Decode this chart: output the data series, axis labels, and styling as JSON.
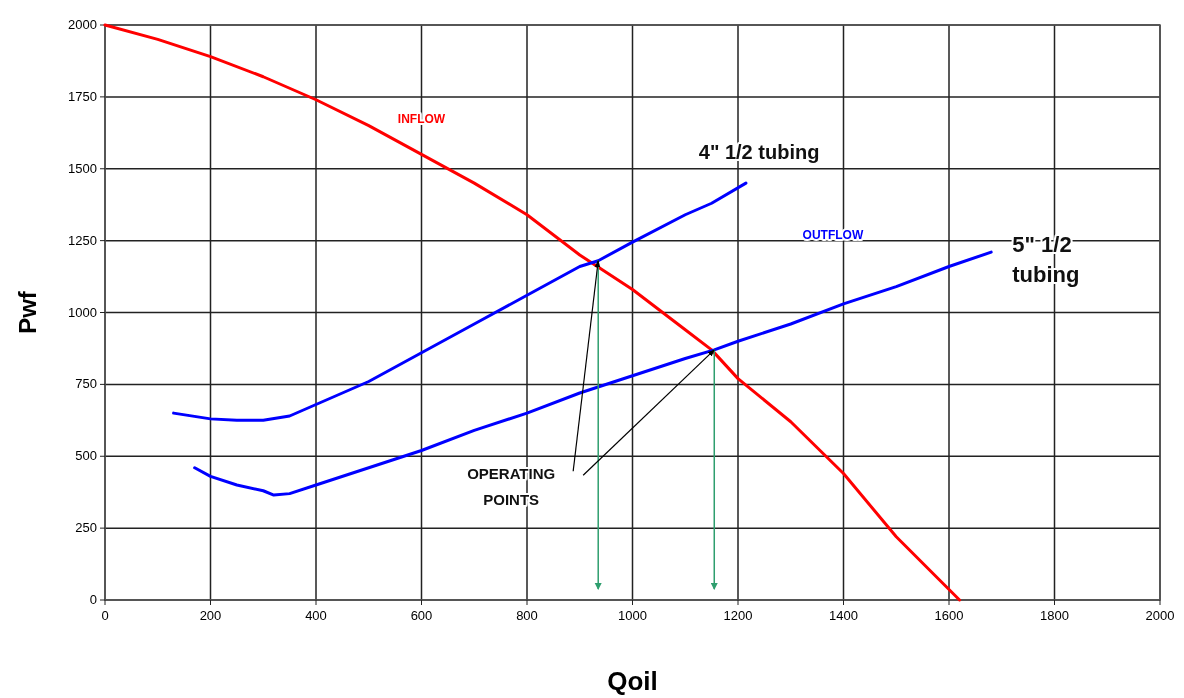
{
  "chart_data": {
    "type": "line",
    "xlabel": "Qoil",
    "ylabel": "Pwf",
    "xlim": [
      0,
      2000
    ],
    "ylim": [
      0,
      2000
    ],
    "xticks": [
      0,
      200,
      400,
      600,
      800,
      1000,
      1200,
      1400,
      1600,
      1800,
      2000
    ],
    "yticks": [
      0,
      250,
      500,
      750,
      1000,
      1250,
      1500,
      1750,
      2000
    ],
    "grid": true,
    "series": [
      {
        "name": "INFLOW",
        "color": "#ff0000",
        "x": [
          0,
          100,
          200,
          300,
          400,
          500,
          600,
          700,
          800,
          900,
          1000,
          1100,
          1150,
          1200,
          1300,
          1400,
          1500,
          1620
        ],
        "values": [
          2000,
          1950,
          1890,
          1820,
          1740,
          1650,
          1550,
          1450,
          1340,
          1200,
          1080,
          940,
          870,
          770,
          620,
          440,
          220,
          0
        ]
      },
      {
        "name": "4\" 1/2 tubing",
        "color": "#0000ff",
        "x": [
          130,
          200,
          250,
          300,
          350,
          400,
          500,
          600,
          700,
          800,
          900,
          935,
          1000,
          1100,
          1150,
          1215
        ],
        "values": [
          650,
          630,
          625,
          625,
          640,
          680,
          760,
          860,
          960,
          1060,
          1160,
          1180,
          1245,
          1340,
          1380,
          1450
        ]
      },
      {
        "name": "5\" 1/2 tubing",
        "color": "#0000ff",
        "x": [
          170,
          200,
          250,
          300,
          320,
          350,
          400,
          500,
          600,
          700,
          800,
          900,
          1000,
          1100,
          1155,
          1200,
          1300,
          1400,
          1500,
          1600,
          1680
        ],
        "values": [
          460,
          430,
          400,
          380,
          365,
          370,
          400,
          460,
          520,
          590,
          650,
          720,
          780,
          840,
          870,
          900,
          960,
          1030,
          1090,
          1160,
          1210
        ]
      },
      {
        "color": "#2e9e6e",
        "x": [
          935,
          935
        ],
        "values": [
          1180,
          40
        ]
      },
      {
        "color": "#2e9e6e",
        "x": [
          1155,
          1155
        ],
        "values": [
          870,
          40
        ]
      }
    ],
    "annotations": [
      "OUTFLOW",
      {
        "text": "OPERATING POINTS",
        "x": 935,
        "y": 1180
      }
    ]
  }
}
